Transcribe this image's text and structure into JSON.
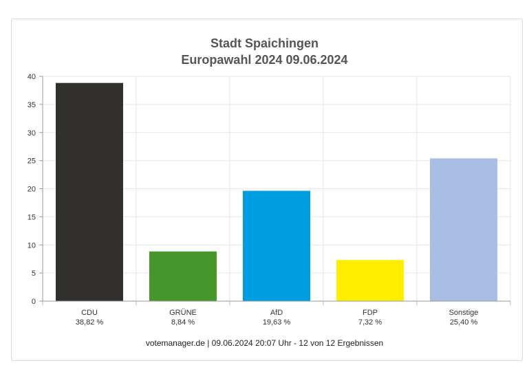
{
  "chart_data": {
    "type": "bar",
    "title": "Stadt Spaichingen",
    "subtitle": "Europawahl 2024 09.06.2024",
    "categories": [
      "CDU",
      "GRÜNE",
      "AfD",
      "FDP",
      "Sonstige"
    ],
    "values": [
      38.82,
      8.84,
      19.63,
      7.32,
      25.4
    ],
    "value_labels": [
      "38,82 %",
      "8,84 %",
      "19,63 %",
      "7,32 %",
      "25,40 %"
    ],
    "colors": [
      "#32302e",
      "#46962b",
      "#009ee0",
      "#ffed00",
      "#aabde3"
    ],
    "ylim": [
      0,
      40
    ],
    "yticks": [
      0,
      5,
      10,
      15,
      20,
      25,
      30,
      35,
      40
    ],
    "grid": true,
    "xlabel": "",
    "ylabel": ""
  },
  "footer": "votemanager.de | 09.06.2024 20:07 Uhr - 12 von 12 Ergebnissen"
}
